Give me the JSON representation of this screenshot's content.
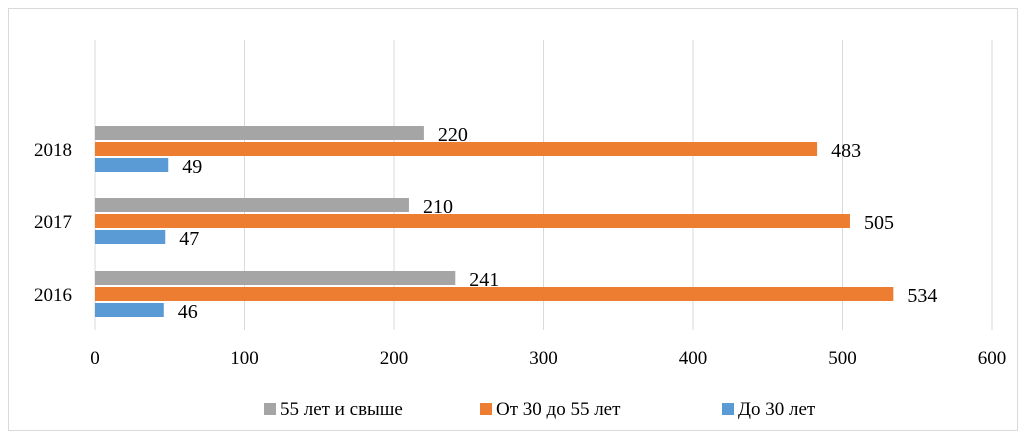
{
  "chart_data": {
    "type": "bar",
    "orientation": "horizontal",
    "categories": [
      "2016",
      "2017",
      "2018"
    ],
    "series": [
      {
        "name": "До 30 лет",
        "color": "#5b9bd5",
        "values": [
          46,
          47,
          49
        ]
      },
      {
        "name": "От 30 до 55 лет",
        "color": "#ed7d31",
        "values": [
          534,
          505,
          483
        ]
      },
      {
        "name": "55 лет и свыше",
        "color": "#a5a5a5",
        "values": [
          241,
          210,
          220
        ]
      }
    ],
    "x_ticks": [
      0,
      100,
      200,
      300,
      400,
      500,
      600
    ],
    "xlim": [
      0,
      600
    ],
    "grid": "vertical",
    "legend_position": "bottom",
    "legend_order": [
      "55 лет и свыше",
      "От 30 до 55 лет",
      "До 30 лет"
    ],
    "title": "",
    "xlabel": "",
    "ylabel": ""
  }
}
